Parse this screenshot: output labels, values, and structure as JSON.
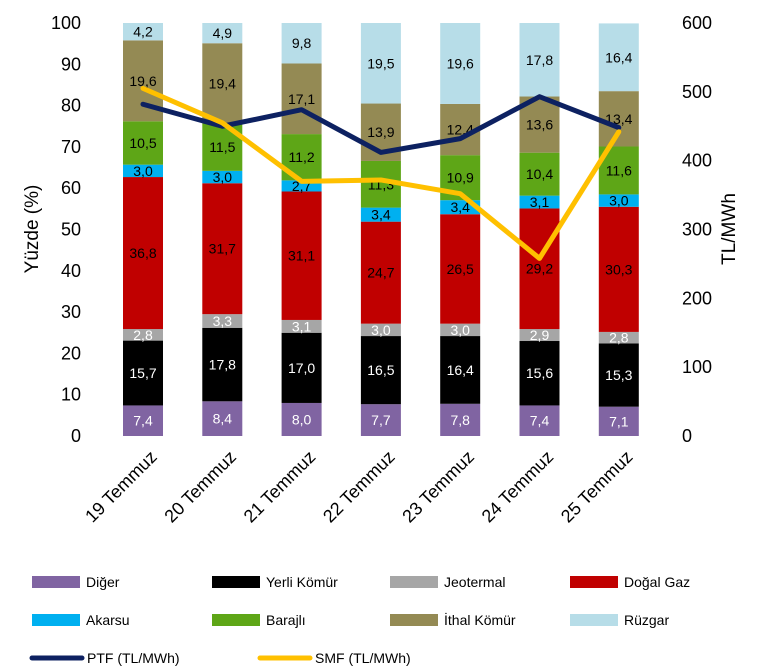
{
  "chart_data": {
    "type": "bar",
    "subtype": "stacked-bar-with-lines",
    "categories": [
      "19 Temmuz",
      "20 Temmuz",
      "21 Temmuz",
      "22 Temmuz",
      "23 Temmuz",
      "24 Temmuz",
      "25 Temmuz"
    ],
    "ylabel": "Yüzde (%)",
    "ylim": [
      0,
      100
    ],
    "y_ticks": [
      0,
      10,
      20,
      30,
      40,
      50,
      60,
      70,
      80,
      90,
      100
    ],
    "y2label": "TL/MWh",
    "y2lim": [
      0,
      600
    ],
    "y2_ticks": [
      0,
      100,
      200,
      300,
      400,
      500,
      600
    ],
    "grid": false,
    "legend_position": "bottom",
    "series": [
      {
        "name": "Diğer",
        "color": "#8064A2",
        "label_color": "#ffffff",
        "values": [
          7.4,
          8.4,
          8.0,
          7.7,
          7.8,
          7.4,
          7.1
        ]
      },
      {
        "name": "Yerli Kömür",
        "color": "#000000",
        "label_color": "#ffffff",
        "values": [
          15.7,
          17.8,
          17.0,
          16.5,
          16.4,
          15.6,
          15.3
        ]
      },
      {
        "name": "Jeotermal",
        "color": "#A6A6A6",
        "label_color": "#ffffff",
        "values": [
          2.8,
          3.3,
          3.1,
          3.0,
          3.0,
          2.9,
          2.8
        ]
      },
      {
        "name": "Doğal Gaz",
        "color": "#C00000",
        "label_color": "#000000",
        "values": [
          36.8,
          31.7,
          31.1,
          24.7,
          26.5,
          29.2,
          30.3
        ]
      },
      {
        "name": "Akarsu",
        "color": "#00B0F0",
        "label_color": "#000000",
        "values": [
          3.0,
          3.0,
          2.7,
          3.4,
          3.4,
          3.1,
          3.0
        ]
      },
      {
        "name": "Barajlı",
        "color": "#5EA617",
        "label_color": "#000000",
        "values": [
          10.5,
          11.5,
          11.2,
          11.3,
          10.9,
          10.4,
          11.6
        ]
      },
      {
        "name": "İthal Kömür",
        "color": "#948A54",
        "label_color": "#000000",
        "values": [
          19.6,
          19.4,
          17.1,
          13.9,
          12.4,
          13.6,
          13.4
        ]
      },
      {
        "name": "Rüzgar",
        "color": "#B7DDE8",
        "label_color": "#000000",
        "values": [
          4.2,
          4.9,
          9.8,
          19.5,
          19.6,
          17.8,
          16.4
        ]
      }
    ],
    "lines": [
      {
        "name": "PTF (TL/MWh)",
        "axis": "right",
        "color": "#0D2161",
        "values": [
          482,
          450,
          474,
          412,
          432,
          493,
          448
        ]
      },
      {
        "name": "SMF (TL/MWh)",
        "axis": "right",
        "color": "#FFC000",
        "values": [
          505,
          455,
          370,
          372,
          352,
          258,
          442
        ]
      }
    ]
  }
}
